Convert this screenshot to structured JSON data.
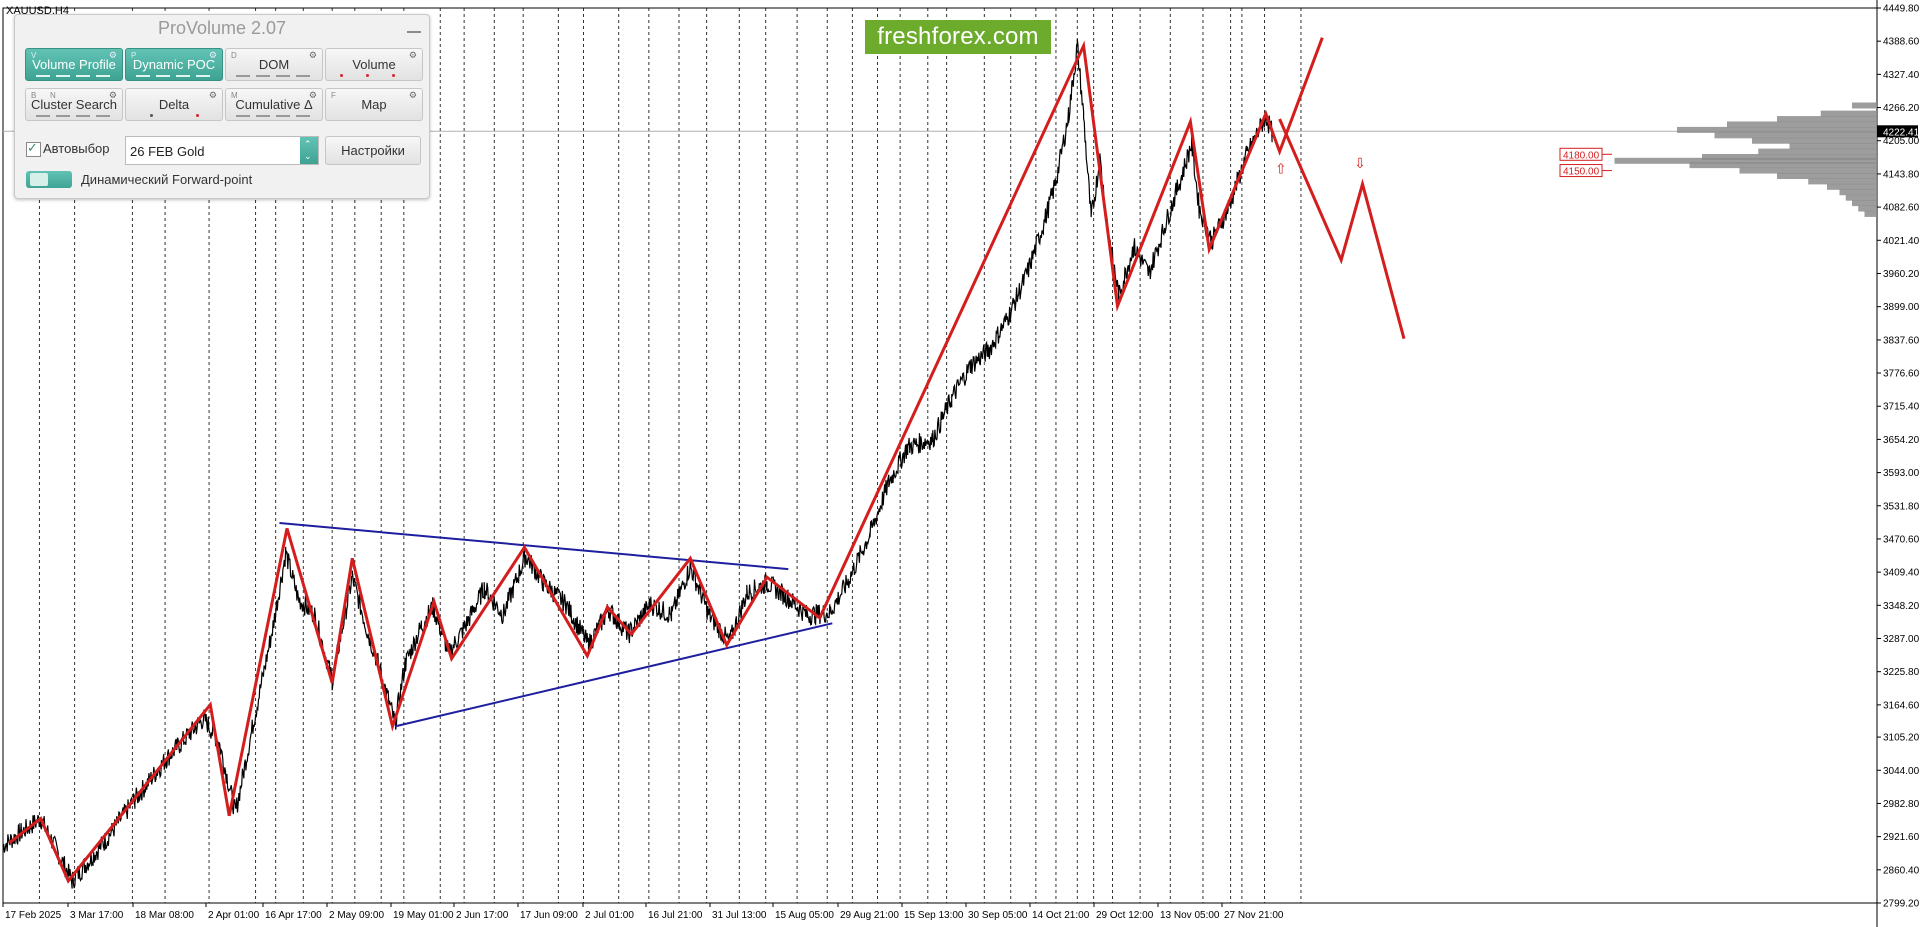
{
  "symbol": "XAUUSD,H4",
  "watermark": "freshforex.com",
  "panel": {
    "title": "ProVolume 2.07",
    "buttons": [
      {
        "label": "Volume Profile",
        "key": "V",
        "active": true
      },
      {
        "label": "Dynamic POC",
        "key": "P",
        "active": true
      },
      {
        "label": "DOM",
        "key": "D",
        "active": false
      },
      {
        "label": "Volume",
        "key": "",
        "active": false
      },
      {
        "label": "Cluster Search",
        "key": "B",
        "key2": "N",
        "active": false
      },
      {
        "label": "Delta",
        "key": "",
        "active": false
      },
      {
        "label": "Cumulative Δ",
        "key": "M",
        "active": false
      },
      {
        "label": "Map",
        "key": "F",
        "active": false
      }
    ],
    "autoselect_label": "Автовыбор",
    "autoselect_checked": true,
    "contract_value": "26 FEB Gold",
    "settings_label": "Настройки",
    "forward_label": "Динамический Forward-point"
  },
  "colors": {
    "bull_bear": "#000000",
    "wave": "#d41e1e",
    "trendline": "#1e1ea0",
    "profile": "#8c8c8c",
    "grid": "#000000",
    "accent_panel": "#46ad9d",
    "brand": "#6cab2c"
  },
  "chart_data": {
    "type": "line",
    "symbol": "XAUUSD",
    "timeframe": "H4",
    "current_price_label": "4222.41",
    "ylim": [
      2799.2,
      4449.8
    ],
    "y_ticks": [
      "4449.80",
      "4388.60",
      "4327.40",
      "4266.20",
      "4205.00",
      "4143.80",
      "4082.60",
      "4021.40",
      "3960.20",
      "3899.00",
      "3837.60",
      "3776.60",
      "3715.40",
      "3654.20",
      "3593.00",
      "3531.80",
      "3470.60",
      "3409.40",
      "3348.20",
      "3287.00",
      "3225.80",
      "3164.60",
      "3105.20",
      "3044.00",
      "2982.80",
      "2921.60",
      "2860.40",
      "2799.20"
    ],
    "x_ticks": [
      "17 Feb 2025",
      "3 Mar 17:00",
      "18 Mar 08:00",
      "2 Apr 01:00",
      "16 Apr 17:00",
      "2 May 09:00",
      "19 May 01:00",
      "2 Jun 17:00",
      "17 Jun 09:00",
      "2 Jul 01:00",
      "16 Jul 21:00",
      "31 Jul 13:00",
      "15 Aug 05:00",
      "29 Aug 21:00",
      "15 Sep 13:00",
      "30 Sep 05:00",
      "14 Oct 21:00",
      "29 Oct 12:00",
      "13 Nov 05:00",
      "27 Nov 21:00"
    ],
    "price_path": [
      [
        0,
        2905
      ],
      [
        30,
        2955
      ],
      [
        55,
        2840
      ],
      [
        80,
        2910
      ],
      [
        105,
        2990
      ],
      [
        130,
        3065
      ],
      [
        160,
        3140
      ],
      [
        172,
        3095
      ],
      [
        185,
        2965
      ],
      [
        200,
        3140
      ],
      [
        215,
        3310
      ],
      [
        225,
        3445
      ],
      [
        235,
        3360
      ],
      [
        248,
        3330
      ],
      [
        262,
        3210
      ],
      [
        278,
        3400
      ],
      [
        290,
        3300
      ],
      [
        300,
        3230
      ],
      [
        312,
        3130
      ],
      [
        320,
        3240
      ],
      [
        333,
        3310
      ],
      [
        342,
        3345
      ],
      [
        355,
        3260
      ],
      [
        368,
        3310
      ],
      [
        383,
        3380
      ],
      [
        398,
        3330
      ],
      [
        416,
        3440
      ],
      [
        430,
        3390
      ],
      [
        448,
        3350
      ],
      [
        466,
        3275
      ],
      [
        482,
        3340
      ],
      [
        498,
        3295
      ],
      [
        515,
        3350
      ],
      [
        532,
        3330
      ],
      [
        547,
        3420
      ],
      [
        562,
        3330
      ],
      [
        578,
        3280
      ],
      [
        592,
        3370
      ],
      [
        608,
        3390
      ],
      [
        623,
        3365
      ],
      [
        640,
        3330
      ],
      [
        658,
        3335
      ],
      [
        672,
        3390
      ],
      [
        690,
        3480
      ],
      [
        705,
        3575
      ],
      [
        720,
        3640
      ],
      [
        740,
        3655
      ],
      [
        755,
        3730
      ],
      [
        770,
        3790
      ],
      [
        785,
        3820
      ],
      [
        800,
        3880
      ],
      [
        815,
        3960
      ],
      [
        828,
        4050
      ],
      [
        838,
        4130
      ],
      [
        848,
        4250
      ],
      [
        855,
        4380
      ],
      [
        860,
        4250
      ],
      [
        866,
        4060
      ],
      [
        873,
        4170
      ],
      [
        880,
        4030
      ],
      [
        888,
        3920
      ],
      [
        900,
        4010
      ],
      [
        912,
        3960
      ],
      [
        925,
        4050
      ],
      [
        938,
        4140
      ],
      [
        946,
        4200
      ],
      [
        952,
        4080
      ],
      [
        962,
        4020
      ],
      [
        975,
        4080
      ],
      [
        990,
        4180
      ],
      [
        1005,
        4250
      ],
      [
        1010,
        4220
      ]
    ],
    "wave_path": [
      [
        5,
        2910
      ],
      [
        30,
        2955
      ],
      [
        52,
        2840
      ],
      [
        165,
        3165
      ],
      [
        180,
        2960
      ],
      [
        226,
        3490
      ],
      [
        262,
        3205
      ],
      [
        278,
        3435
      ],
      [
        310,
        3125
      ],
      [
        343,
        3355
      ],
      [
        357,
        3250
      ],
      [
        415,
        3455
      ],
      [
        465,
        3255
      ],
      [
        481,
        3345
      ],
      [
        500,
        3295
      ],
      [
        547,
        3435
      ],
      [
        576,
        3275
      ],
      [
        608,
        3400
      ],
      [
        650,
        3325
      ],
      [
        860,
        4380
      ],
      [
        887,
        3900
      ],
      [
        945,
        4240
      ],
      [
        960,
        4005
      ],
      [
        1005,
        4255
      ],
      [
        1016,
        4185
      ],
      [
        1050,
        4395
      ]
    ],
    "forecast_path": [
      [
        1016,
        4245
      ],
      [
        1065,
        3985
      ],
      [
        1082,
        4125
      ],
      [
        1115,
        3840
      ]
    ],
    "trendlines": [
      {
        "from": [
          220,
          3500
        ],
        "to": [
          625,
          3415
        ]
      },
      {
        "from": [
          312,
          3125
        ],
        "to": [
          660,
          3315
        ]
      }
    ],
    "vertical_grid_x": [
      29,
      57,
      103,
      129,
      164,
      201,
      217,
      239,
      262,
      280,
      301,
      319,
      348,
      367,
      391,
      414,
      442,
      462,
      490,
      514,
      538,
      560,
      586,
      607,
      632,
      656,
      676,
      696,
      714,
      736,
      751,
      781,
      802,
      822,
      838,
      855,
      868,
      883,
      905,
      929,
      955,
      977,
      986,
      1004,
      1033
    ],
    "level_labels": [
      {
        "text": "4180.00",
        "price": 4180.0
      },
      {
        "text": "4150.00",
        "price": 4150.0
      }
    ],
    "arrows": [
      {
        "dir": "up",
        "x": 1017,
        "price": 4145
      },
      {
        "dir": "down",
        "x": 1080,
        "price": 4155
      }
    ],
    "volume_profile": [
      [
        4270,
        20
      ],
      [
        4255,
        45
      ],
      [
        4245,
        80
      ],
      [
        4235,
        120
      ],
      [
        4225,
        160
      ],
      [
        4215,
        130
      ],
      [
        4205,
        100
      ],
      [
        4195,
        70
      ],
      [
        4185,
        95
      ],
      [
        4175,
        140
      ],
      [
        4168,
        210
      ],
      [
        4160,
        150
      ],
      [
        4150,
        110
      ],
      [
        4140,
        80
      ],
      [
        4130,
        55
      ],
      [
        4120,
        40
      ],
      [
        4110,
        30
      ],
      [
        4100,
        25
      ],
      [
        4090,
        20
      ],
      [
        4080,
        15
      ],
      [
        4070,
        10
      ]
    ]
  }
}
